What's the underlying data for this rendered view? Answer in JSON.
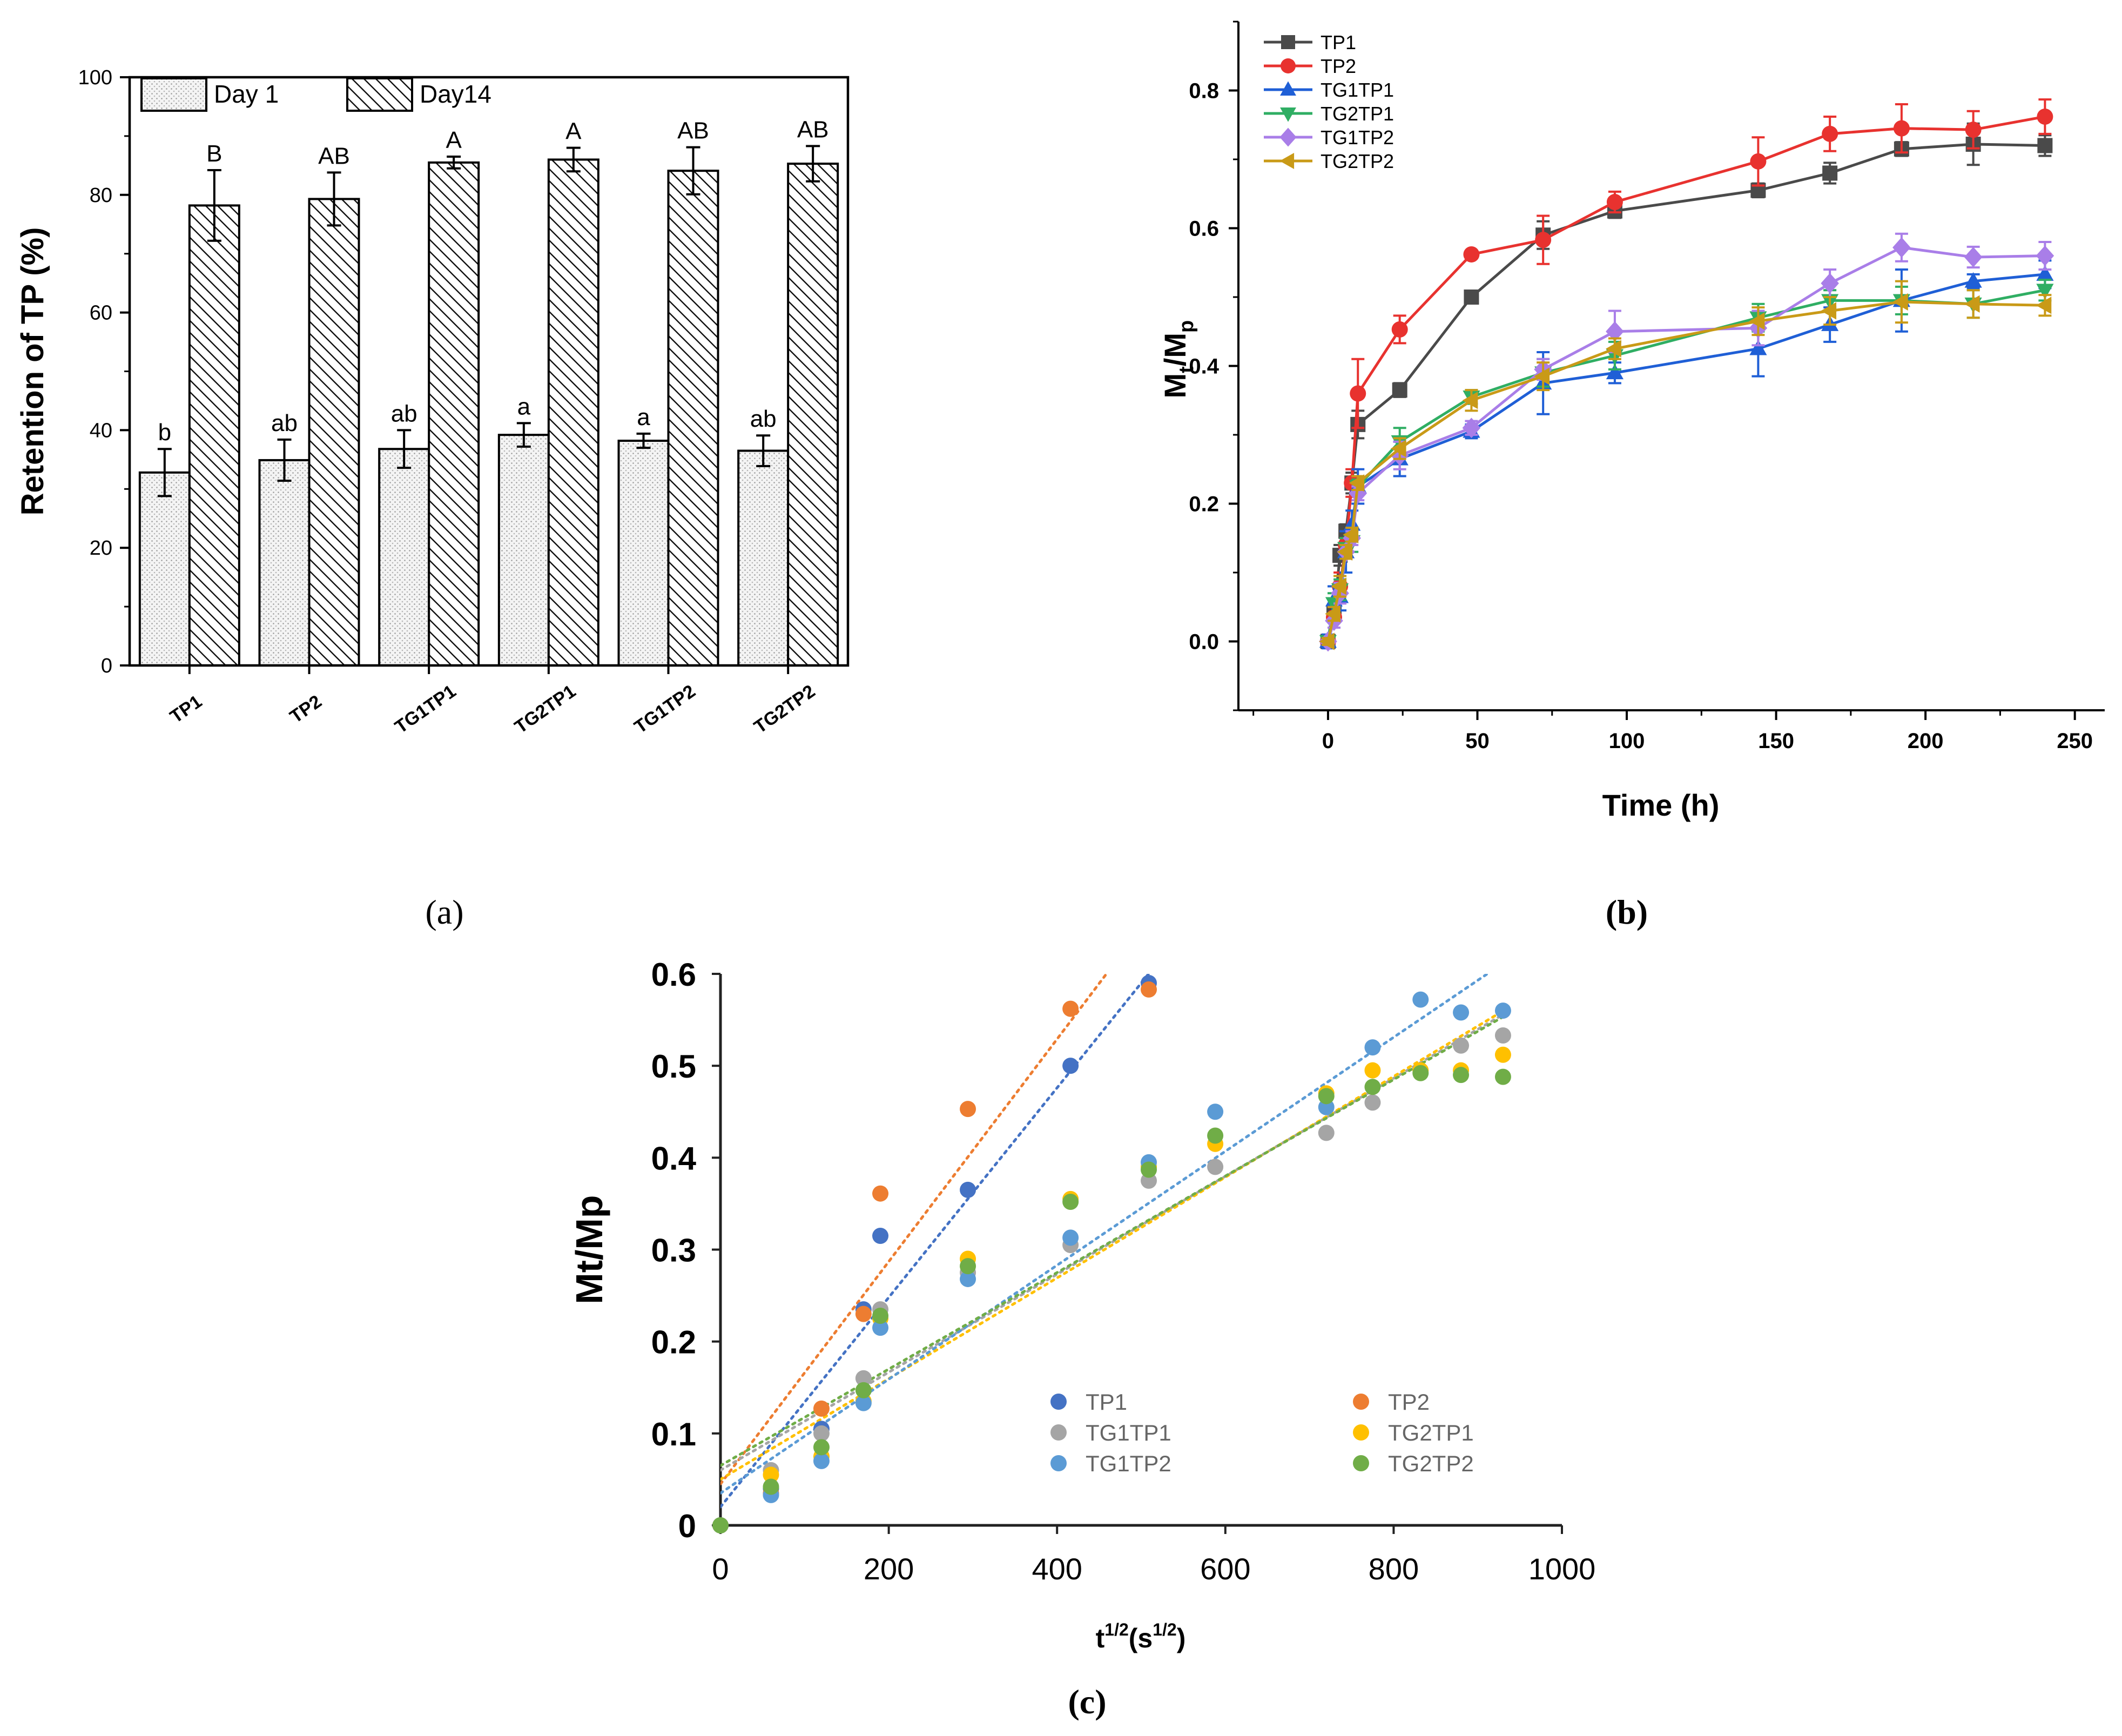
{
  "chart_data": [
    {
      "id": "a",
      "type": "bar",
      "panel_label": "(a)",
      "categories": [
        "TP1",
        "TP2",
        "TG1TP1",
        "TG2TP1",
        "TG1TP2",
        "TG2TP2"
      ],
      "series": [
        {
          "name": "Day 1",
          "values": [
            32.8,
            34.9,
            36.8,
            39.2,
            38.2,
            36.5
          ],
          "errors": [
            4.0,
            3.5,
            3.2,
            2.0,
            1.2,
            2.6
          ],
          "letters": [
            "b",
            "ab",
            "ab",
            "a",
            "a",
            "ab"
          ],
          "pattern": "dots"
        },
        {
          "name": "Day14",
          "values": [
            78.2,
            79.3,
            85.5,
            86.0,
            84.1,
            85.3
          ],
          "errors": [
            6.0,
            4.5,
            1.0,
            2.0,
            4.0,
            3.0
          ],
          "letters": [
            "B",
            "AB",
            "A",
            "A",
            "AB",
            "AB"
          ],
          "pattern": "hatch"
        }
      ],
      "ylabel": "Retention of TP (%)",
      "xlabel": "",
      "ylim": [
        0,
        100
      ],
      "yticks": [
        0,
        20,
        40,
        60,
        80,
        100
      ],
      "legend": "top-left"
    },
    {
      "id": "b",
      "type": "line",
      "panel_label": "(b)",
      "xlabel": "Time (h)",
      "ylabel_main": "M",
      "ylabel_sub1": "t",
      "ylabel_slash": "/M",
      "ylabel_sub2": "p",
      "xlim": [
        -30,
        260
      ],
      "ylim": [
        -0.1,
        0.9
      ],
      "xticks": [
        0,
        50,
        100,
        150,
        200,
        250
      ],
      "yticks": [
        0.0,
        0.2,
        0.4,
        0.6,
        0.8
      ],
      "ytick_labels": [
        "0.0",
        "0.2",
        "0.4",
        "0.6",
        "0.8"
      ],
      "x": [
        0,
        2,
        4,
        6,
        8,
        10,
        24,
        48,
        72,
        96,
        144,
        168,
        192,
        216,
        240
      ],
      "legend": "top-left",
      "series": [
        {
          "name": "TP1",
          "color": "#4a4a4a",
          "marker": "square",
          "values": [
            0.0,
            0.04,
            0.125,
            0.16,
            0.23,
            0.315,
            0.365,
            0.5,
            0.59,
            0.625,
            0.655,
            0.68,
            0.715,
            0.722,
            0.72
          ],
          "errors": [
            0.005,
            0.02,
            0.015,
            0.01,
            0.015,
            0.02,
            0.01,
            0.005,
            0.02,
            0.01,
            0.01,
            0.015,
            0.01,
            0.03,
            0.015
          ]
        },
        {
          "name": "TP2",
          "color": "#e8322f",
          "marker": "circle",
          "values": [
            0.0,
            0.035,
            0.08,
            0.14,
            0.23,
            0.36,
            0.453,
            0.562,
            0.583,
            0.638,
            0.697,
            0.737,
            0.745,
            0.743,
            0.762
          ],
          "errors": [
            0.005,
            0.015,
            0.02,
            0.02,
            0.02,
            0.05,
            0.02,
            0.005,
            0.035,
            0.015,
            0.035,
            0.025,
            0.035,
            0.027,
            0.025
          ]
        },
        {
          "name": "TG1TP1",
          "color": "#1f5fd6",
          "marker": "triangle-up",
          "values": [
            0.0,
            0.06,
            0.065,
            0.13,
            0.17,
            0.225,
            0.265,
            0.305,
            0.375,
            0.39,
            0.425,
            0.46,
            0.495,
            0.523,
            0.533
          ],
          "errors": [
            0.01,
            0.02,
            0.02,
            0.03,
            0.02,
            0.025,
            0.025,
            0.01,
            0.045,
            0.015,
            0.04,
            0.025,
            0.045,
            0.01,
            0.02
          ]
        },
        {
          "name": "TG2TP1",
          "color": "#2fae63",
          "marker": "triangle-down",
          "values": [
            0.0,
            0.055,
            0.075,
            0.135,
            0.145,
            0.225,
            0.29,
            0.355,
            0.39,
            0.415,
            0.47,
            0.495,
            0.495,
            0.49,
            0.51
          ],
          "errors": [
            0.005,
            0.015,
            0.015,
            0.015,
            0.015,
            0.01,
            0.02,
            0.01,
            0.02,
            0.02,
            0.02,
            0.015,
            0.02,
            0.02,
            0.015
          ]
        },
        {
          "name": "TG1TP2",
          "color": "#a97ee8",
          "marker": "diamond",
          "values": [
            0.0,
            0.03,
            0.07,
            0.13,
            0.15,
            0.215,
            0.27,
            0.31,
            0.395,
            0.45,
            0.455,
            0.52,
            0.572,
            0.558,
            0.56
          ],
          "errors": [
            0.005,
            0.01,
            0.015,
            0.01,
            0.01,
            0.01,
            0.02,
            0.01,
            0.015,
            0.03,
            0.025,
            0.02,
            0.02,
            0.015,
            0.02
          ]
        },
        {
          "name": "TG2TP2",
          "color": "#c99a17",
          "marker": "triangle-left",
          "values": [
            0.0,
            0.04,
            0.08,
            0.13,
            0.155,
            0.23,
            0.28,
            0.35,
            0.385,
            0.425,
            0.465,
            0.48,
            0.493,
            0.49,
            0.488
          ],
          "errors": [
            0.005,
            0.01,
            0.015,
            0.01,
            0.01,
            0.01,
            0.015,
            0.015,
            0.02,
            0.015,
            0.02,
            0.02,
            0.03,
            0.02,
            0.015
          ]
        }
      ]
    },
    {
      "id": "c",
      "type": "scatter",
      "panel_label": "(c)",
      "xlabel_base": "t",
      "xlabel_sup1": "1/2",
      "xlabel_mid": "(s",
      "xlabel_sup2": "1/2",
      "xlabel_end": ")",
      "ylabel": "Mt/Mp",
      "xlim": [
        0,
        1000
      ],
      "ylim": [
        0,
        0.6
      ],
      "xticks": [
        0,
        200,
        400,
        600,
        800,
        1000
      ],
      "yticks": [
        0,
        0.1,
        0.2,
        0.3,
        0.4,
        0.5,
        0.6
      ],
      "ytick_labels": [
        "0",
        "0.1",
        "0.2",
        "0.3",
        "0.4",
        "0.5",
        "0.6"
      ],
      "x": [
        0,
        60,
        120,
        170,
        190,
        294,
        416,
        509,
        588,
        720,
        775,
        832,
        880,
        930
      ],
      "legend": "bottom-right",
      "trendline_style": "dotted linear",
      "series": [
        {
          "name": "TP1",
          "color": "#4472c4",
          "values": [
            0.0,
            0.04,
            0.105,
            0.235,
            0.315,
            0.365,
            0.5,
            0.59,
            null,
            null,
            null,
            null,
            null,
            null
          ],
          "trend": [
            0.02,
            0.00114
          ]
        },
        {
          "name": "TP2",
          "color": "#ed7d31",
          "values": [
            0.0,
            0.035,
            0.127,
            0.23,
            0.361,
            0.453,
            0.562,
            0.583,
            null,
            null,
            null,
            null,
            null,
            null
          ],
          "trend": [
            0.045,
            0.00121
          ]
        },
        {
          "name": "TG1TP1",
          "color": "#a5a5a5",
          "values": [
            0.0,
            0.06,
            0.1,
            0.16,
            0.235,
            0.275,
            0.305,
            0.375,
            0.39,
            0.427,
            0.46,
            null,
            0.522,
            0.533
          ],
          "trend": [
            0.06,
            0.000533
          ]
        },
        {
          "name": "TG2TP1",
          "color": "#ffc000",
          "values": [
            0.0,
            0.055,
            0.075,
            0.135,
            0.225,
            0.29,
            0.355,
            0.39,
            0.415,
            0.47,
            0.495,
            0.495,
            0.495,
            0.512
          ],
          "trend": [
            0.05,
            0.000548
          ]
        },
        {
          "name": "TG1TP2",
          "color": "#5b9bd5",
          "values": [
            0.0,
            0.033,
            0.07,
            0.133,
            0.215,
            0.268,
            0.313,
            0.395,
            0.45,
            0.455,
            0.52,
            0.572,
            0.558,
            0.56
          ],
          "trend": [
            0.035,
            0.00062
          ]
        },
        {
          "name": "TG2TP2",
          "color": "#70ad47",
          "values": [
            0.0,
            0.042,
            0.085,
            0.147,
            0.228,
            0.282,
            0.352,
            0.387,
            0.424,
            0.467,
            0.477,
            0.492,
            0.49,
            0.488
          ],
          "trend": [
            0.065,
            0.000525
          ]
        }
      ]
    }
  ]
}
